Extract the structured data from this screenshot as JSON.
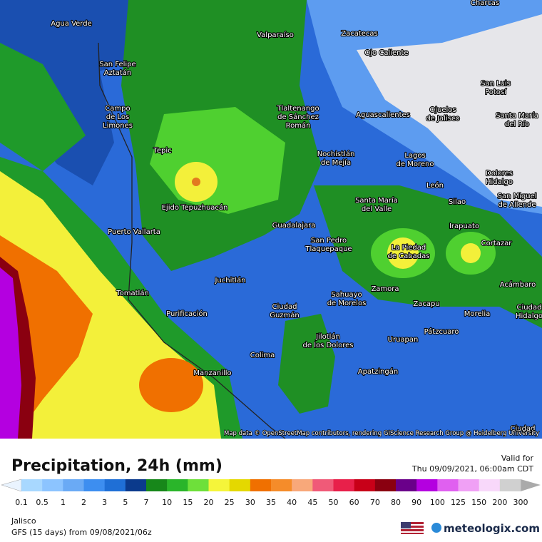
{
  "map": {
    "cities": [
      [
        "Agua Verde"
      ],
      [
        "Valparaíso"
      ],
      [
        "Zacatecas"
      ],
      [
        "Charcas"
      ],
      [
        "Ojo Caliente"
      ],
      [
        "San Felipe",
        "Aztatán"
      ],
      [
        "San Luis",
        "Potosí"
      ],
      [
        "Campo",
        "de Los",
        "Limones"
      ],
      [
        "Tlaltenango",
        "de Sánchez",
        "Román"
      ],
      [
        "Aguascalientes"
      ],
      [
        "Ojuelos",
        "de Jalisco"
      ],
      [
        "Santa María",
        "del Río"
      ],
      [
        "Tepic"
      ],
      [
        "Nochistlán",
        "de Mejía"
      ],
      [
        "Lagos",
        "de Moreno"
      ],
      [
        "Dolores",
        "Hidalgo"
      ],
      [
        "León"
      ],
      [
        "San Miguel",
        "de Allende"
      ],
      [
        "Ejido Tepuzhuacán"
      ],
      [
        "Santa María",
        "del Valle"
      ],
      [
        "Silao"
      ],
      [
        "Guadalajara"
      ],
      [
        "Irapuato"
      ],
      [
        "Puerto Vallarta"
      ],
      [
        "San Pedro",
        "Tlaquepaque"
      ],
      [
        "Cortazar"
      ],
      [
        "La Piedad",
        "de Cabadas"
      ],
      [
        "Juchitlán"
      ],
      [
        "Acámbaro"
      ],
      [
        "Zamora"
      ],
      [
        "Tomatlán"
      ],
      [
        "Sahuayo",
        "de Morelos"
      ],
      [
        "Zacapu"
      ],
      [
        "Ciudad",
        "Hidalgo"
      ],
      [
        "Ciudad",
        "Guzmán"
      ],
      [
        "Purificación"
      ],
      [
        "Morelia"
      ],
      [
        "Jilotlán",
        "de los Dolores"
      ],
      [
        "Pátzcuaro"
      ],
      [
        "Uruapan"
      ],
      [
        "Colima"
      ],
      [
        "Apatzingán"
      ],
      [
        "Manzanillo"
      ],
      [
        "Ciudad"
      ]
    ],
    "attribution": "Map data © OpenStreetMap contributors, rendering GIScience Research Group @ Heidelberg University"
  },
  "legend": {
    "title": "Precipitation, 24h (mm)",
    "valid_label": "Valid for",
    "valid_time": "Thu 09/09/2021, 06:00am CDT",
    "region": "Jalisco",
    "model": "GFS (15 days) from 09/08/2021/06z",
    "brand": "meteologix.com",
    "colorbar": {
      "labels": [
        0.1,
        0.5,
        1,
        2,
        3,
        5,
        7,
        10,
        15,
        20,
        25,
        30,
        35,
        40,
        45,
        50,
        60,
        70,
        80,
        90,
        100,
        125,
        150,
        200,
        300
      ],
      "colors": [
        "#a8d8ff",
        "#8cc4ff",
        "#6aaaf5",
        "#3d8ef0",
        "#1f6fd6",
        "#0b3a8c",
        "#17871a",
        "#2ab52a",
        "#6ee03a",
        "#f5f53a",
        "#e4d800",
        "#f07000",
        "#f58c2a",
        "#f8a87a",
        "#f05a78",
        "#e8204a",
        "#c80018",
        "#8a0010",
        "#6a008a",
        "#b400e0",
        "#e060f0",
        "#f0a0f5",
        "#f8d8fa",
        "#d0d0d0"
      ]
    }
  }
}
